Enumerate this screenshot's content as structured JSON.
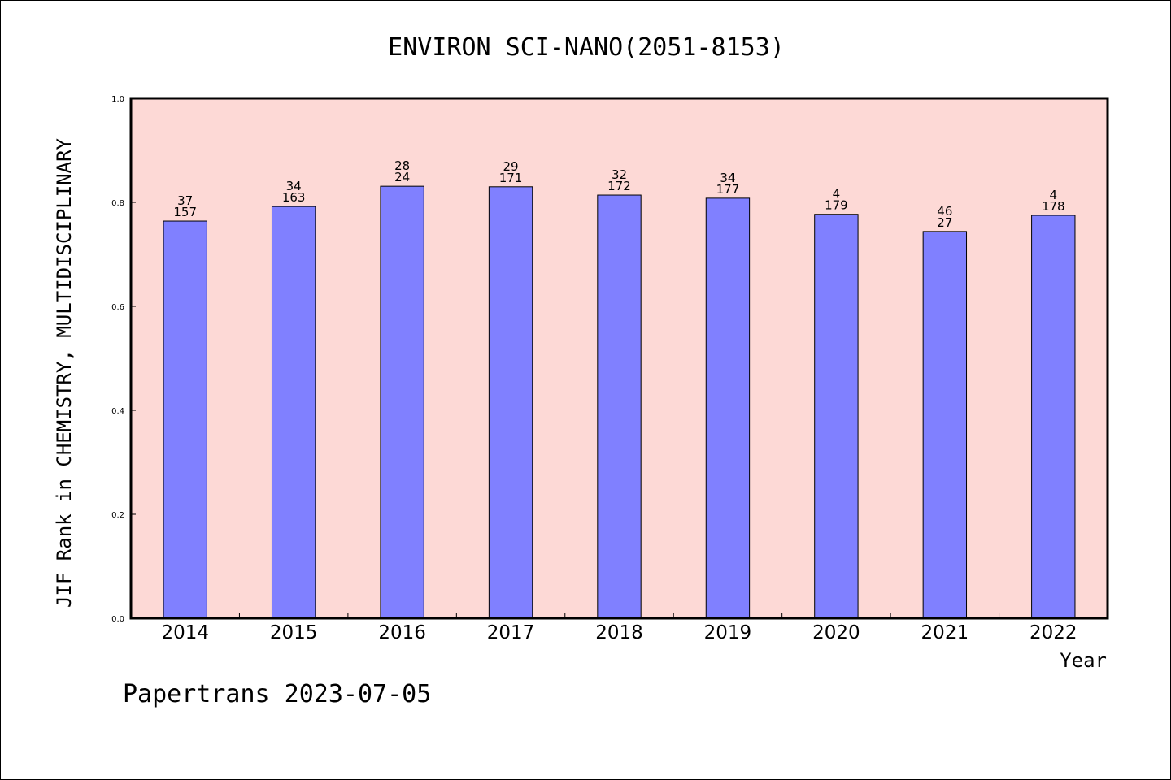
{
  "chart_data": {
    "type": "bar",
    "title": "ENVIRON SCI-NANO(2051-8153)",
    "xlabel": "Year",
    "ylabel": "JIF Rank in CHEMISTRY, MULTIDISCIPLINARY",
    "ylim": [
      0,
      1.0
    ],
    "yticks": [
      "0.0",
      "0.2",
      "0.4",
      "0.6",
      "0.8",
      "1.0"
    ],
    "categories": [
      "2014",
      "2015",
      "2016",
      "2017",
      "2018",
      "2019",
      "2020",
      "2021",
      "2022"
    ],
    "values": [
      0.764,
      0.792,
      0.831,
      0.83,
      0.814,
      0.808,
      0.777,
      0.744,
      0.775
    ],
    "rank_labels": [
      "37",
      "34",
      "28",
      "29",
      "32",
      "34",
      "4",
      "46",
      "4"
    ],
    "total_labels": [
      "157",
      "163",
      "24",
      "171",
      "172",
      "177",
      "179",
      "27",
      "178"
    ],
    "colors": {
      "plot_background": "#fdd9d6",
      "bar_fill": "#8080ff",
      "bar_stroke": "#000000"
    },
    "grid": false
  },
  "footer": {
    "text": "Papertrans 2023-07-05"
  }
}
